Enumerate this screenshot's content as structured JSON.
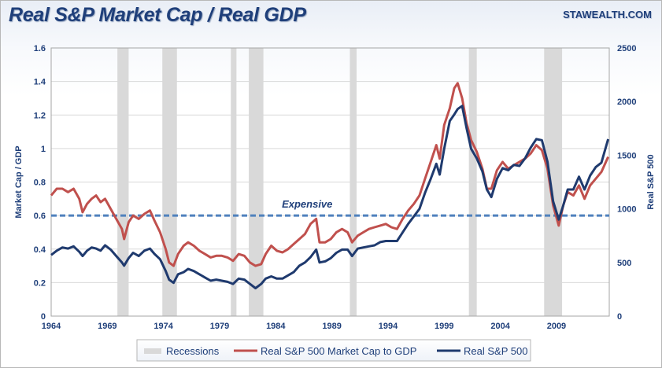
{
  "header": {
    "title": "Real S&P Market Cap / Real GDP",
    "brand": "STAWEALTH.COM"
  },
  "colors": {
    "red": "#c0504d",
    "blue": "#1f3a6e",
    "recession": "#d9d9d9",
    "threshold": "#4f81bd",
    "text": "#1f3f7a"
  },
  "chart_data": {
    "type": "line",
    "ylabel": "Market Cap / GDP",
    "y2label": "Real S&P 500",
    "xlim": [
      1964,
      2013.7
    ],
    "ylim": [
      0,
      1.6
    ],
    "y2lim": [
      0,
      2500
    ],
    "x_ticks": [
      "1964",
      "1969",
      "1974",
      "1979",
      "1984",
      "1989",
      "1994",
      "1999",
      "2004",
      "2009"
    ],
    "y_ticks": [
      "0",
      "0.2",
      "0.4",
      "0.6",
      "0.8",
      "1",
      "1.2",
      "1.4",
      "1.6"
    ],
    "y2_ticks": [
      "0",
      "500",
      "1000",
      "1500",
      "2000",
      "2500"
    ],
    "annotation": {
      "text": "Expensive",
      "y": 0.6
    },
    "recessions": [
      [
        1969.9,
        1970.9
      ],
      [
        1973.9,
        1975.2
      ],
      [
        1980.0,
        1980.5
      ],
      [
        1981.6,
        1982.9
      ],
      [
        1990.6,
        1991.2
      ],
      [
        2001.2,
        2001.9
      ],
      [
        2007.9,
        2009.5
      ]
    ],
    "legend": [
      "Recessions",
      "Real S&P 500 Market Cap to GDP",
      "Real S&P 500"
    ],
    "series": [
      {
        "name": "Real S&P 500 Market Cap to GDP",
        "axis": "left",
        "points": [
          [
            1964.0,
            0.72
          ],
          [
            1964.5,
            0.76
          ],
          [
            1965.0,
            0.76
          ],
          [
            1965.5,
            0.74
          ],
          [
            1966.0,
            0.76
          ],
          [
            1966.5,
            0.7
          ],
          [
            1966.8,
            0.62
          ],
          [
            1967.2,
            0.67
          ],
          [
            1967.6,
            0.7
          ],
          [
            1968.0,
            0.72
          ],
          [
            1968.4,
            0.68
          ],
          [
            1968.8,
            0.7
          ],
          [
            1969.3,
            0.64
          ],
          [
            1969.8,
            0.58
          ],
          [
            1970.3,
            0.52
          ],
          [
            1970.5,
            0.46
          ],
          [
            1970.9,
            0.56
          ],
          [
            1971.3,
            0.6
          ],
          [
            1971.8,
            0.58
          ],
          [
            1972.3,
            0.61
          ],
          [
            1972.8,
            0.63
          ],
          [
            1973.2,
            0.57
          ],
          [
            1973.7,
            0.5
          ],
          [
            1974.2,
            0.4
          ],
          [
            1974.5,
            0.32
          ],
          [
            1974.9,
            0.3
          ],
          [
            1975.3,
            0.37
          ],
          [
            1975.8,
            0.42
          ],
          [
            1976.2,
            0.44
          ],
          [
            1976.7,
            0.42
          ],
          [
            1977.2,
            0.39
          ],
          [
            1977.7,
            0.37
          ],
          [
            1978.2,
            0.35
          ],
          [
            1978.7,
            0.36
          ],
          [
            1979.2,
            0.36
          ],
          [
            1979.7,
            0.35
          ],
          [
            1980.2,
            0.33
          ],
          [
            1980.7,
            0.37
          ],
          [
            1981.2,
            0.36
          ],
          [
            1981.7,
            0.32
          ],
          [
            1982.2,
            0.3
          ],
          [
            1982.7,
            0.31
          ],
          [
            1983.1,
            0.37
          ],
          [
            1983.6,
            0.42
          ],
          [
            1984.1,
            0.39
          ],
          [
            1984.6,
            0.38
          ],
          [
            1985.1,
            0.4
          ],
          [
            1985.6,
            0.43
          ],
          [
            1986.1,
            0.46
          ],
          [
            1986.6,
            0.49
          ],
          [
            1987.1,
            0.55
          ],
          [
            1987.6,
            0.58
          ],
          [
            1987.9,
            0.44
          ],
          [
            1988.4,
            0.44
          ],
          [
            1988.9,
            0.46
          ],
          [
            1989.4,
            0.5
          ],
          [
            1989.9,
            0.52
          ],
          [
            1990.4,
            0.5
          ],
          [
            1990.8,
            0.44
          ],
          [
            1991.3,
            0.48
          ],
          [
            1991.8,
            0.5
          ],
          [
            1992.3,
            0.52
          ],
          [
            1992.8,
            0.53
          ],
          [
            1993.3,
            0.54
          ],
          [
            1993.8,
            0.55
          ],
          [
            1994.3,
            0.53
          ],
          [
            1994.8,
            0.52
          ],
          [
            1995.3,
            0.58
          ],
          [
            1995.8,
            0.63
          ],
          [
            1996.3,
            0.67
          ],
          [
            1996.8,
            0.72
          ],
          [
            1997.3,
            0.82
          ],
          [
            1997.8,
            0.92
          ],
          [
            1998.3,
            1.02
          ],
          [
            1998.6,
            0.94
          ],
          [
            1999.0,
            1.14
          ],
          [
            1999.5,
            1.24
          ],
          [
            1999.9,
            1.36
          ],
          [
            2000.2,
            1.39
          ],
          [
            2000.6,
            1.3
          ],
          [
            2001.0,
            1.15
          ],
          [
            2001.4,
            1.05
          ],
          [
            2001.9,
            0.98
          ],
          [
            2002.4,
            0.88
          ],
          [
            2002.8,
            0.76
          ],
          [
            2003.2,
            0.76
          ],
          [
            2003.7,
            0.87
          ],
          [
            2004.2,
            0.92
          ],
          [
            2004.7,
            0.88
          ],
          [
            2005.2,
            0.9
          ],
          [
            2005.7,
            0.92
          ],
          [
            2006.2,
            0.94
          ],
          [
            2006.7,
            0.97
          ],
          [
            2007.2,
            1.02
          ],
          [
            2007.7,
            0.99
          ],
          [
            2008.2,
            0.88
          ],
          [
            2008.7,
            0.66
          ],
          [
            2009.2,
            0.54
          ],
          [
            2009.6,
            0.66
          ],
          [
            2010.0,
            0.74
          ],
          [
            2010.5,
            0.72
          ],
          [
            2011.0,
            0.78
          ],
          [
            2011.5,
            0.7
          ],
          [
            2012.0,
            0.78
          ],
          [
            2012.5,
            0.82
          ],
          [
            2013.0,
            0.86
          ],
          [
            2013.6,
            0.95
          ]
        ]
      },
      {
        "name": "Real S&P 500",
        "axis": "right",
        "points": [
          [
            1964.0,
            570
          ],
          [
            1964.5,
            610
          ],
          [
            1965.0,
            640
          ],
          [
            1965.5,
            630
          ],
          [
            1966.0,
            650
          ],
          [
            1966.5,
            600
          ],
          [
            1966.8,
            560
          ],
          [
            1967.2,
            610
          ],
          [
            1967.6,
            640
          ],
          [
            1968.0,
            630
          ],
          [
            1968.4,
            610
          ],
          [
            1968.8,
            660
          ],
          [
            1969.3,
            620
          ],
          [
            1969.8,
            560
          ],
          [
            1970.3,
            500
          ],
          [
            1970.5,
            470
          ],
          [
            1970.9,
            540
          ],
          [
            1971.3,
            590
          ],
          [
            1971.8,
            560
          ],
          [
            1972.3,
            610
          ],
          [
            1972.8,
            630
          ],
          [
            1973.2,
            580
          ],
          [
            1973.7,
            530
          ],
          [
            1974.2,
            420
          ],
          [
            1974.5,
            340
          ],
          [
            1974.9,
            310
          ],
          [
            1975.3,
            390
          ],
          [
            1975.8,
            410
          ],
          [
            1976.2,
            440
          ],
          [
            1976.7,
            420
          ],
          [
            1977.2,
            390
          ],
          [
            1977.7,
            360
          ],
          [
            1978.2,
            330
          ],
          [
            1978.7,
            340
          ],
          [
            1979.2,
            330
          ],
          [
            1979.7,
            320
          ],
          [
            1980.2,
            300
          ],
          [
            1980.7,
            350
          ],
          [
            1981.2,
            340
          ],
          [
            1981.7,
            300
          ],
          [
            1982.2,
            260
          ],
          [
            1982.7,
            300
          ],
          [
            1983.1,
            350
          ],
          [
            1983.6,
            370
          ],
          [
            1984.1,
            350
          ],
          [
            1984.6,
            350
          ],
          [
            1985.1,
            380
          ],
          [
            1985.6,
            410
          ],
          [
            1986.1,
            470
          ],
          [
            1986.6,
            500
          ],
          [
            1987.1,
            550
          ],
          [
            1987.6,
            620
          ],
          [
            1987.9,
            500
          ],
          [
            1988.4,
            510
          ],
          [
            1988.9,
            540
          ],
          [
            1989.4,
            590
          ],
          [
            1989.9,
            620
          ],
          [
            1990.4,
            620
          ],
          [
            1990.8,
            560
          ],
          [
            1991.3,
            630
          ],
          [
            1991.8,
            640
          ],
          [
            1992.3,
            650
          ],
          [
            1992.8,
            660
          ],
          [
            1993.3,
            690
          ],
          [
            1993.8,
            700
          ],
          [
            1994.3,
            700
          ],
          [
            1994.8,
            700
          ],
          [
            1995.3,
            780
          ],
          [
            1995.8,
            860
          ],
          [
            1996.3,
            930
          ],
          [
            1996.8,
            1000
          ],
          [
            1997.3,
            1150
          ],
          [
            1997.8,
            1280
          ],
          [
            1998.3,
            1420
          ],
          [
            1998.6,
            1320
          ],
          [
            1999.0,
            1560
          ],
          [
            1999.5,
            1820
          ],
          [
            1999.9,
            1880
          ],
          [
            2000.2,
            1930
          ],
          [
            2000.6,
            1960
          ],
          [
            2001.0,
            1750
          ],
          [
            2001.4,
            1560
          ],
          [
            2001.9,
            1470
          ],
          [
            2002.4,
            1350
          ],
          [
            2002.8,
            1180
          ],
          [
            2003.2,
            1110
          ],
          [
            2003.7,
            1280
          ],
          [
            2004.2,
            1380
          ],
          [
            2004.7,
            1360
          ],
          [
            2005.2,
            1410
          ],
          [
            2005.7,
            1400
          ],
          [
            2006.2,
            1470
          ],
          [
            2006.7,
            1570
          ],
          [
            2007.2,
            1650
          ],
          [
            2007.7,
            1640
          ],
          [
            2008.2,
            1440
          ],
          [
            2008.7,
            1070
          ],
          [
            2009.2,
            900
          ],
          [
            2009.6,
            1030
          ],
          [
            2010.0,
            1180
          ],
          [
            2010.5,
            1180
          ],
          [
            2011.0,
            1300
          ],
          [
            2011.5,
            1180
          ],
          [
            2012.0,
            1310
          ],
          [
            2012.5,
            1390
          ],
          [
            2013.0,
            1430
          ],
          [
            2013.6,
            1650
          ]
        ]
      }
    ]
  }
}
